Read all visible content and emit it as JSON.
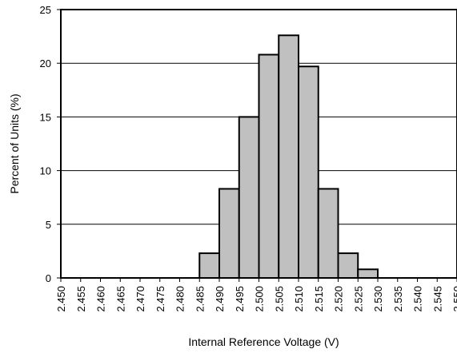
{
  "chart_data": {
    "type": "bar",
    "title": "",
    "xlabel": "Internal Reference Voltage (V)",
    "ylabel": "Percent of Units (%)",
    "ylim": [
      0,
      25
    ],
    "yticks": [
      0,
      5,
      10,
      15,
      20,
      25
    ],
    "xticks": [
      "2.450",
      "2.455",
      "2.460",
      "2.465",
      "2.470",
      "2.475",
      "2.480",
      "2.485",
      "2.490",
      "2.495",
      "2.500",
      "2.505",
      "2.510",
      "2.515",
      "2.520",
      "2.525",
      "2.530",
      "2.535",
      "2.540",
      "2.545",
      "2.550"
    ],
    "bins": [
      {
        "from": "2.485",
        "to": "2.490",
        "value": 2.3
      },
      {
        "from": "2.490",
        "to": "2.495",
        "value": 8.3
      },
      {
        "from": "2.495",
        "to": "2.500",
        "value": 15.0
      },
      {
        "from": "2.500",
        "to": "2.505",
        "value": 20.8
      },
      {
        "from": "2.505",
        "to": "2.510",
        "value": 22.6
      },
      {
        "from": "2.510",
        "to": "2.515",
        "value": 19.7
      },
      {
        "from": "2.515",
        "to": "2.520",
        "value": 8.3
      },
      {
        "from": "2.520",
        "to": "2.525",
        "value": 2.3
      },
      {
        "from": "2.525",
        "to": "2.530",
        "value": 0.8
      }
    ],
    "grid": true,
    "bar_color": "#c0c0c0",
    "edge_color": "#000000"
  }
}
